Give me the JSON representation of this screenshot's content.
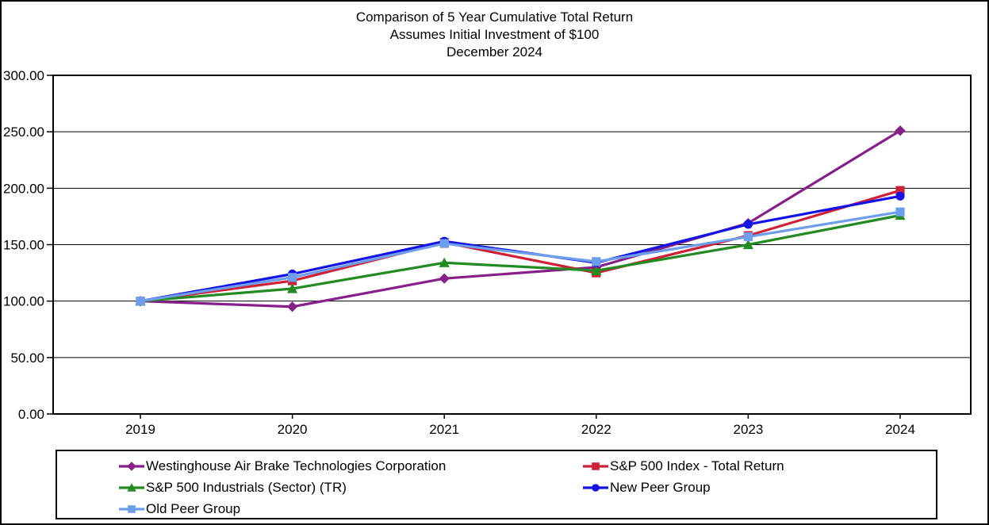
{
  "title": {
    "line1": "Comparison of 5 Year Cumulative Total Return",
    "line2": "Assumes Initial Investment of $100",
    "line3": "December 2024"
  },
  "chart_data": {
    "type": "line",
    "categories": [
      "2019",
      "2020",
      "2021",
      "2022",
      "2023",
      "2024"
    ],
    "series": [
      {
        "name": "Westinghouse Air Brake Technologies Corporation",
        "color": "#871F8B",
        "marker": "diamond",
        "values": [
          100.0,
          95.0,
          120.0,
          130.0,
          169.0,
          251.0
        ]
      },
      {
        "name": "S&P 500 Index - Total Return",
        "color": "#CE2138",
        "marker": "square",
        "values": [
          100.0,
          118.0,
          152.0,
          125.0,
          158.0,
          198.0
        ]
      },
      {
        "name": "S&P 500 Industrials (Sector) (TR)",
        "color": "#228B22",
        "marker": "triangle",
        "values": [
          100.0,
          111.0,
          134.0,
          127.0,
          150.0,
          176.0
        ]
      },
      {
        "name": "New Peer Group",
        "color": "#1313E8",
        "marker": "circle",
        "values": [
          100.0,
          124.0,
          153.0,
          134.0,
          168.0,
          193.0
        ]
      },
      {
        "name": "Old Peer Group",
        "color": "#6D9EEB",
        "marker": "square",
        "values": [
          100.0,
          121.0,
          151.0,
          135.0,
          157.0,
          179.0
        ]
      }
    ],
    "ylim": [
      0,
      300
    ],
    "y_ticks": [
      "300.00",
      "250.00",
      "200.00",
      "150.00",
      "100.00",
      "50.00",
      "0.00"
    ],
    "grid": "horizontal",
    "legend_position": "bottom",
    "legend_columns": 2
  }
}
